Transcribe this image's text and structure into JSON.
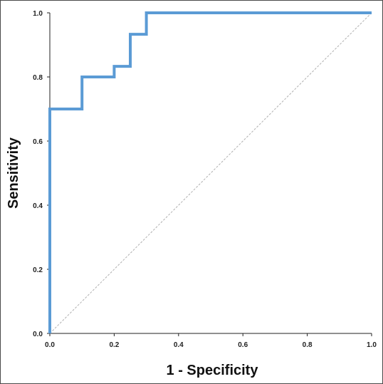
{
  "chart_data": {
    "type": "line",
    "xlabel": "1 - Specificity",
    "ylabel": "Sensitivity",
    "xlim": [
      0,
      1
    ],
    "ylim": [
      0,
      1
    ],
    "x_ticks": [
      "0.0",
      "0.2",
      "0.4",
      "0.6",
      "0.8",
      "1.0"
    ],
    "y_ticks": [
      "0.0",
      "0.2",
      "0.4",
      "0.6",
      "0.8",
      "1.0"
    ],
    "grid": false,
    "series": [
      {
        "color": "#5b9bd5",
        "points": [
          [
            0.0,
            0.0
          ],
          [
            0.0,
            0.7
          ],
          [
            0.1,
            0.7
          ],
          [
            0.1,
            0.8
          ],
          [
            0.2,
            0.8
          ],
          [
            0.2,
            0.833
          ],
          [
            0.25,
            0.833
          ],
          [
            0.25,
            0.867
          ],
          [
            0.25,
            0.933
          ],
          [
            0.3,
            0.933
          ],
          [
            0.3,
            1.0
          ],
          [
            1.0,
            1.0
          ]
        ]
      },
      {
        "color": "#b0b0b0",
        "style": "dashed",
        "points": [
          [
            0.0,
            0.0
          ],
          [
            1.0,
            1.0
          ]
        ]
      }
    ]
  }
}
